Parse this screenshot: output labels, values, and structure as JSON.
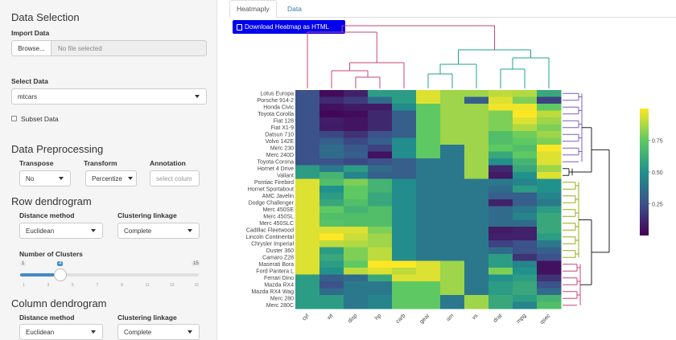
{
  "sidebar": {
    "data_selection_heading": "Data Selection",
    "import_label": "Import Data",
    "browse_label": "Browse...",
    "file_placeholder": "No file selected",
    "select_data_label": "Select Data",
    "select_data_value": "mtcars",
    "subset_label": "Subset Data",
    "preprocessing_heading": "Data Preprocessing",
    "transpose_label": "Transpose",
    "transpose_value": "No",
    "transform_label": "Transform",
    "transform_value": "Percentize",
    "annotation_label": "Annotation",
    "annotation_placeholder": "select colum",
    "row_dendro_heading": "Row dendrogram",
    "row_distance_label": "Distance method",
    "row_distance_value": "Euclidean",
    "row_linkage_label": "Clustering linkage",
    "row_linkage_value": "Complete",
    "clusters_label": "Number of Clusters",
    "clusters_min": "1",
    "clusters_max": "15",
    "clusters_value": 4,
    "clusters_ticks": [
      "1",
      "3",
      "5",
      "7",
      "9",
      "11",
      "13",
      "15"
    ],
    "col_dendro_heading": "Column dendrogram",
    "col_distance_label": "Distance method",
    "col_distance_value": "Euclidean",
    "col_linkage_label": "Clustering linkage",
    "col_linkage_value": "Complete"
  },
  "main": {
    "tabs": [
      {
        "label": "Heatmaply",
        "active": true
      },
      {
        "label": "Data",
        "active": false
      }
    ],
    "download_label": "Download Heatmap as HTML"
  },
  "colors": {
    "row_cluster_purple": "#7b5fbf",
    "row_cluster_black": "#222222",
    "row_cluster_olive": "#9aab15",
    "row_cluster_pink": "#c8467a",
    "col_cluster_pink": "#c8467a",
    "col_cluster_teal": "#1ca58a"
  },
  "chart_data": {
    "type": "heatmap",
    "rows": [
      "Lotus Europa",
      "Porsche 914-2",
      "Honda Civic",
      "Toyota Corolla",
      "Fiat 128",
      "Fiat X1-9",
      "Datsun 710",
      "Volvo 142E",
      "Merc 230",
      "Merc 240D",
      "Toyota Corona",
      "Hornet 4 Drive",
      "Valiant",
      "Pontiac Firebird",
      "Hornet Sportabout",
      "AMC Javelin",
      "Dodge Challenger",
      "Merc 450SE",
      "Merc 450SL",
      "Merc 450SLC",
      "Cadillac Fleetwood",
      "Lincoln Continental",
      "Chrysler Imperial",
      "Duster 360",
      "Camaro Z28",
      "Maserati Bora",
      "Ford Pantera L",
      "Ferrari Dino",
      "Mazda RX4",
      "Mazda RX4 Wag",
      "Merc 280",
      "Merc 280C"
    ],
    "columns": [
      "cyl",
      "wt",
      "disp",
      "hp",
      "carb",
      "gear",
      "am",
      "vs",
      "drat",
      "mpg",
      "qsec"
    ],
    "row_clusters": [
      1,
      1,
      1,
      1,
      1,
      1,
      1,
      1,
      1,
      1,
      1,
      2,
      2,
      3,
      3,
      3,
      3,
      3,
      3,
      3,
      3,
      3,
      3,
      3,
      3,
      4,
      4,
      4,
      4,
      4,
      4,
      4
    ],
    "values": [
      [
        0.25,
        0.03,
        0.1,
        0.55,
        0.55,
        0.95,
        0.85,
        0.85,
        0.9,
        0.88,
        0.6
      ],
      [
        0.25,
        0.13,
        0.18,
        0.35,
        0.55,
        0.95,
        0.85,
        0.3,
        0.95,
        0.8,
        0.2
      ],
      [
        0.25,
        0.05,
        0.08,
        0.08,
        0.48,
        0.75,
        0.85,
        0.85,
        0.98,
        0.98,
        0.75
      ],
      [
        0.25,
        0.02,
        0.03,
        0.12,
        0.3,
        0.75,
        0.85,
        0.85,
        0.8,
        1.0,
        0.9
      ],
      [
        0.25,
        0.09,
        0.06,
        0.12,
        0.3,
        0.75,
        0.85,
        0.85,
        0.8,
        0.95,
        0.85
      ],
      [
        0.25,
        0.08,
        0.06,
        0.12,
        0.3,
        0.75,
        0.85,
        0.85,
        0.8,
        0.88,
        0.8
      ],
      [
        0.25,
        0.22,
        0.15,
        0.25,
        0.3,
        0.75,
        0.85,
        0.85,
        0.7,
        0.78,
        0.85
      ],
      [
        0.25,
        0.3,
        0.22,
        0.3,
        0.48,
        0.75,
        0.85,
        0.85,
        0.7,
        0.75,
        0.8
      ],
      [
        0.25,
        0.35,
        0.28,
        0.2,
        0.48,
        0.75,
        0.4,
        0.85,
        0.75,
        0.7,
        1.0
      ],
      [
        0.25,
        0.35,
        0.3,
        0.05,
        0.48,
        0.75,
        0.4,
        0.85,
        0.6,
        0.75,
        0.95
      ],
      [
        0.25,
        0.25,
        0.22,
        0.25,
        0.3,
        0.4,
        0.4,
        0.85,
        0.5,
        0.65,
        0.95
      ],
      [
        0.55,
        0.4,
        0.55,
        0.35,
        0.3,
        0.4,
        0.4,
        0.85,
        0.12,
        0.6,
        0.85
      ],
      [
        0.55,
        0.65,
        0.45,
        0.3,
        0.3,
        0.4,
        0.4,
        0.85,
        0.08,
        0.5,
        0.95
      ],
      [
        0.95,
        0.7,
        0.8,
        0.65,
        0.48,
        0.4,
        0.4,
        0.4,
        0.4,
        0.45,
        0.5
      ],
      [
        0.95,
        0.5,
        0.75,
        0.65,
        0.48,
        0.4,
        0.4,
        0.4,
        0.35,
        0.55,
        0.5
      ],
      [
        0.95,
        0.55,
        0.75,
        0.6,
        0.48,
        0.4,
        0.4,
        0.4,
        0.3,
        0.3,
        0.45
      ],
      [
        0.95,
        0.6,
        0.7,
        0.6,
        0.48,
        0.4,
        0.4,
        0.4,
        0.1,
        0.3,
        0.4
      ],
      [
        0.95,
        0.75,
        0.65,
        0.7,
        0.48,
        0.4,
        0.4,
        0.4,
        0.35,
        0.4,
        0.55
      ],
      [
        0.95,
        0.7,
        0.7,
        0.7,
        0.48,
        0.4,
        0.4,
        0.4,
        0.35,
        0.45,
        0.6
      ],
      [
        0.95,
        0.72,
        0.7,
        0.7,
        0.48,
        0.4,
        0.4,
        0.4,
        0.35,
        0.35,
        0.6
      ],
      [
        0.95,
        0.95,
        0.95,
        0.8,
        0.48,
        0.4,
        0.4,
        0.4,
        0.08,
        0.1,
        0.6
      ],
      [
        0.95,
        1.0,
        0.92,
        0.85,
        0.48,
        0.4,
        0.4,
        0.4,
        0.1,
        0.1,
        0.55
      ],
      [
        0.95,
        0.9,
        0.88,
        0.85,
        0.48,
        0.4,
        0.4,
        0.4,
        0.2,
        0.25,
        0.4
      ],
      [
        0.95,
        0.55,
        0.8,
        0.9,
        0.48,
        0.4,
        0.4,
        0.4,
        0.35,
        0.25,
        0.3
      ],
      [
        0.95,
        0.6,
        0.8,
        0.9,
        0.48,
        0.4,
        0.4,
        0.4,
        0.55,
        0.15,
        0.25
      ],
      [
        0.95,
        0.55,
        0.75,
        1.0,
        1.0,
        0.95,
        0.85,
        0.4,
        0.55,
        0.45,
        0.05
      ],
      [
        0.95,
        0.5,
        0.9,
        0.95,
        0.9,
        0.95,
        0.85,
        0.4,
        0.8,
        0.5,
        0.05
      ],
      [
        0.55,
        0.3,
        0.35,
        0.6,
        0.95,
        0.95,
        0.85,
        0.4,
        0.5,
        0.55,
        0.15
      ],
      [
        0.55,
        0.25,
        0.4,
        0.4,
        0.75,
        0.75,
        0.85,
        0.4,
        0.55,
        0.6,
        0.25
      ],
      [
        0.55,
        0.35,
        0.4,
        0.4,
        0.75,
        0.75,
        0.85,
        0.4,
        0.55,
        0.6,
        0.35
      ],
      [
        0.55,
        0.55,
        0.4,
        0.45,
        0.75,
        0.75,
        0.4,
        0.85,
        0.6,
        0.55,
        0.65
      ],
      [
        0.55,
        0.55,
        0.4,
        0.45,
        0.75,
        0.75,
        0.4,
        0.85,
        0.6,
        0.45,
        0.7
      ]
    ],
    "colorbar": {
      "ticks": [
        "0.75",
        "0.50",
        "0.25"
      ],
      "range": [
        0,
        1
      ]
    }
  }
}
